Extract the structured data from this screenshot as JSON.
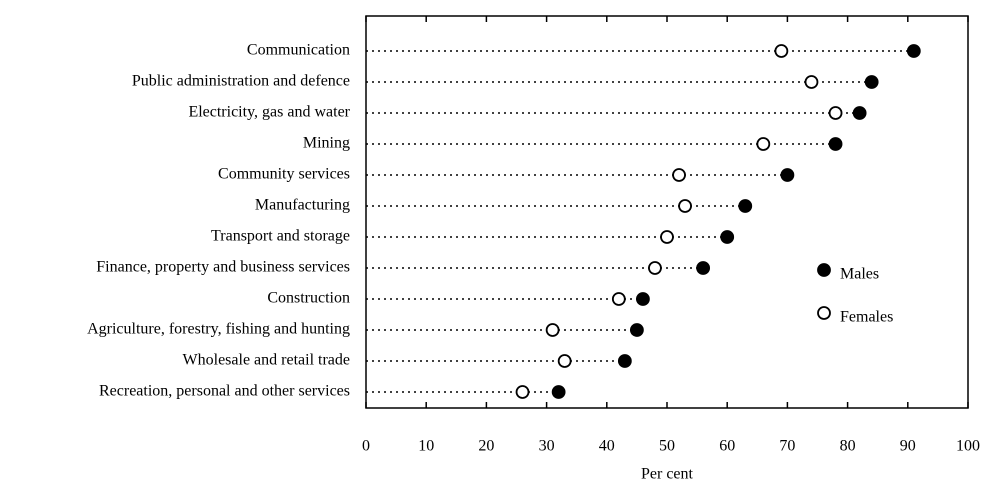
{
  "chart_data": {
    "type": "dot",
    "categories": [
      "Communication",
      "Public administration and defence",
      "Electricity, gas and water",
      "Mining",
      "Community services",
      "Manufacturing",
      "Transport and storage",
      "Finance, property and business services",
      "Construction",
      "Agriculture, forestry, fishing and hunting",
      "Wholesale and retail trade",
      "Recreation, personal and other services"
    ],
    "series": [
      {
        "name": "Males",
        "color": "#000000",
        "values": [
          91,
          84,
          82,
          78,
          70,
          63,
          60,
          56,
          46,
          45,
          43,
          32
        ]
      },
      {
        "name": "Females",
        "color": "#ffffff",
        "values": [
          69,
          74,
          78,
          66,
          52,
          53,
          50,
          48,
          42,
          31,
          33,
          26
        ]
      }
    ],
    "x_label": "Per cent",
    "xlim": [
      0,
      100
    ],
    "xticks": [
      0,
      10,
      20,
      30,
      40,
      50,
      60,
      70,
      80,
      90,
      100
    ]
  }
}
